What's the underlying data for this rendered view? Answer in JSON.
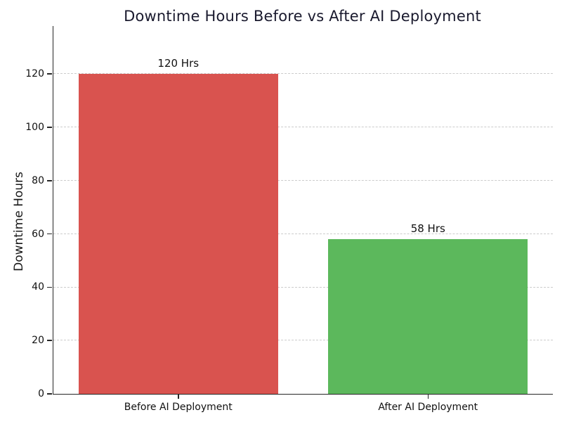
{
  "page": {
    "background_color": "#ffffff"
  },
  "chart_data": {
    "type": "bar",
    "title": "Downtime Hours Before vs After AI Deployment",
    "title_color": "#1a1a2e",
    "categories": [
      "Before AI Deployment",
      "After AI Deployment"
    ],
    "values": [
      120,
      58
    ],
    "bar_labels": [
      "120 Hrs",
      "58 Hrs"
    ],
    "bar_colors": [
      "#d9534f",
      "#5cb85c"
    ],
    "xlabel": "",
    "ylabel": "Downtime Hours",
    "ylim": [
      0,
      138
    ],
    "yticks": [
      0,
      20,
      40,
      60,
      80,
      100,
      120
    ],
    "grid": "horizontal-dashed",
    "grid_color": "#cccccc",
    "axis_color": "#262626",
    "legend": "none"
  }
}
